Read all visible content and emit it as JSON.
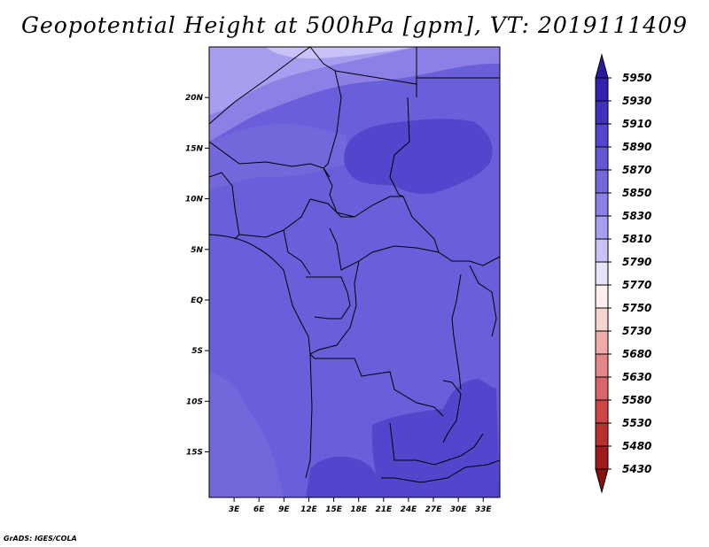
{
  "title": "Geopotential Height at 500hPa [gpm], VT: 2019111409",
  "credit": "GrADS: IGES/COLA",
  "map": {
    "lat_labels": [
      "20N",
      "15N",
      "10N",
      "5N",
      "EQ",
      "5S",
      "10S",
      "15S"
    ],
    "lat_values": [
      20,
      15,
      10,
      5,
      0,
      -5,
      -10,
      -15
    ],
    "lon_labels": [
      "3E",
      "6E",
      "9E",
      "12E",
      "15E",
      "18E",
      "21E",
      "24E",
      "27E",
      "30E",
      "33E"
    ],
    "lon_values": [
      3,
      6,
      9,
      12,
      15,
      18,
      21,
      24,
      27,
      30,
      33
    ],
    "lat_range": [
      -19.5,
      25
    ],
    "lon_range": [
      0,
      35
    ]
  },
  "colorbar": {
    "levels": [
      "5950",
      "5930",
      "5910",
      "5890",
      "5870",
      "5850",
      "5830",
      "5810",
      "5790",
      "5770",
      "5750",
      "5730",
      "5680",
      "5630",
      "5580",
      "5530",
      "5480",
      "5430"
    ],
    "colors": [
      "#2a1a9e",
      "#3322b0",
      "#3f31bf",
      "#5146cc",
      "#6258d6",
      "#7367dc",
      "#8c80e6",
      "#a89ef0",
      "#c8c2f6",
      "#e6e4fb",
      "#fff0f0",
      "#f9d2d2",
      "#f0aaaa",
      "#e48686",
      "#d96666",
      "#cc4646",
      "#b83030",
      "#a01c1c",
      "#8a1010"
    ]
  }
}
